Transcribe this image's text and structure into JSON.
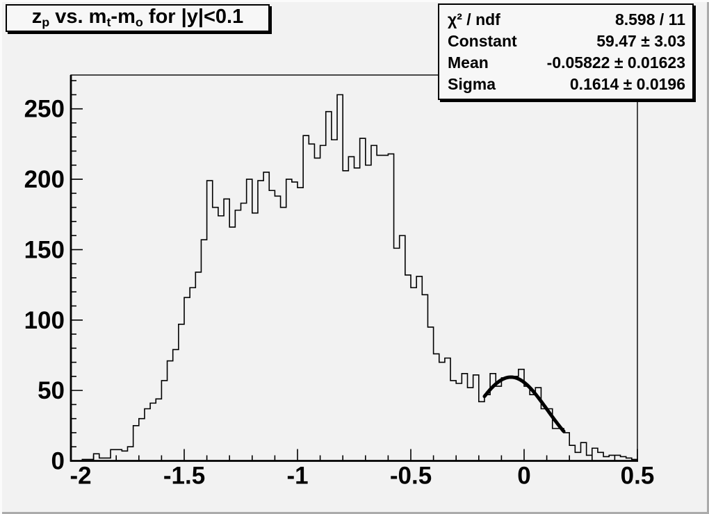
{
  "window": {
    "background": "#f2f2f2",
    "pave_background": "#f7f7f7",
    "foreground": "#000000"
  },
  "title": {
    "full": "z_p vs. m_t-m_o for |y|<0.1",
    "segments": {
      "t1": "z",
      "s1": "p",
      "t2": " vs. m",
      "s2": "t",
      "t3": "-m",
      "s3": "o",
      "t4": " for |y|<0.1"
    }
  },
  "stats": {
    "rows": [
      {
        "label": "χ² / ndf",
        "value": "8.598 / 11"
      },
      {
        "label": "Constant",
        "value": "59.47 ± 3.03"
      },
      {
        "label": "Mean",
        "value": "-0.05822 ± 0.01623"
      },
      {
        "label": "Sigma",
        "value": "0.1614 ± 0.0196"
      }
    ]
  },
  "chart_data": {
    "type": "bar",
    "subtype": "step-histogram",
    "title": "z_p vs. m_t-m_o for |y|<0.1",
    "xlabel": "",
    "ylabel": "",
    "xlim": [
      -2,
      0.5
    ],
    "ylim": [
      0,
      274
    ],
    "grid": false,
    "x_start": -2,
    "bin_width": 0.025,
    "values": [
      0,
      0,
      1,
      1,
      5,
      2,
      2,
      8,
      8,
      7,
      10,
      25,
      30,
      37,
      41,
      44,
      57,
      71,
      79,
      97,
      116,
      123,
      134,
      157,
      199,
      180,
      174,
      186,
      166,
      178,
      183,
      200,
      176,
      199,
      205,
      192,
      188,
      180,
      200,
      198,
      194,
      231,
      225,
      215,
      224,
      248,
      228,
      260,
      206,
      216,
      208,
      229,
      210,
      224,
      217,
      217,
      218,
      151,
      160,
      132,
      123,
      131,
      118,
      95,
      76,
      70,
      73,
      57,
      55,
      62,
      52,
      61,
      42,
      47,
      62,
      53,
      59,
      59,
      60,
      65,
      53,
      47,
      52,
      37,
      37,
      23,
      23,
      20,
      11,
      6,
      13,
      4,
      9,
      6,
      3,
      4,
      4,
      3,
      2,
      1
    ],
    "x_major_ticks": [
      -2,
      -1.5,
      -1,
      -0.5,
      0,
      0.5
    ],
    "x_major_labels": [
      "-2",
      "-1.5",
      "-1",
      "-0.5",
      "0",
      "0.5"
    ],
    "x_minor_step": 0.1,
    "y_major_ticks": [
      0,
      50,
      100,
      150,
      200,
      250
    ],
    "y_major_labels": [
      "0",
      "50",
      "100",
      "150",
      "200",
      "250"
    ],
    "y_minor_step": 10,
    "line_color": "#000000",
    "fit": {
      "type": "gaussian",
      "constant": 59.47,
      "mean": -0.05822,
      "sigma": 0.1614,
      "range": [
        -0.175,
        0.175
      ],
      "color": "#000000",
      "line_width": 5
    }
  }
}
